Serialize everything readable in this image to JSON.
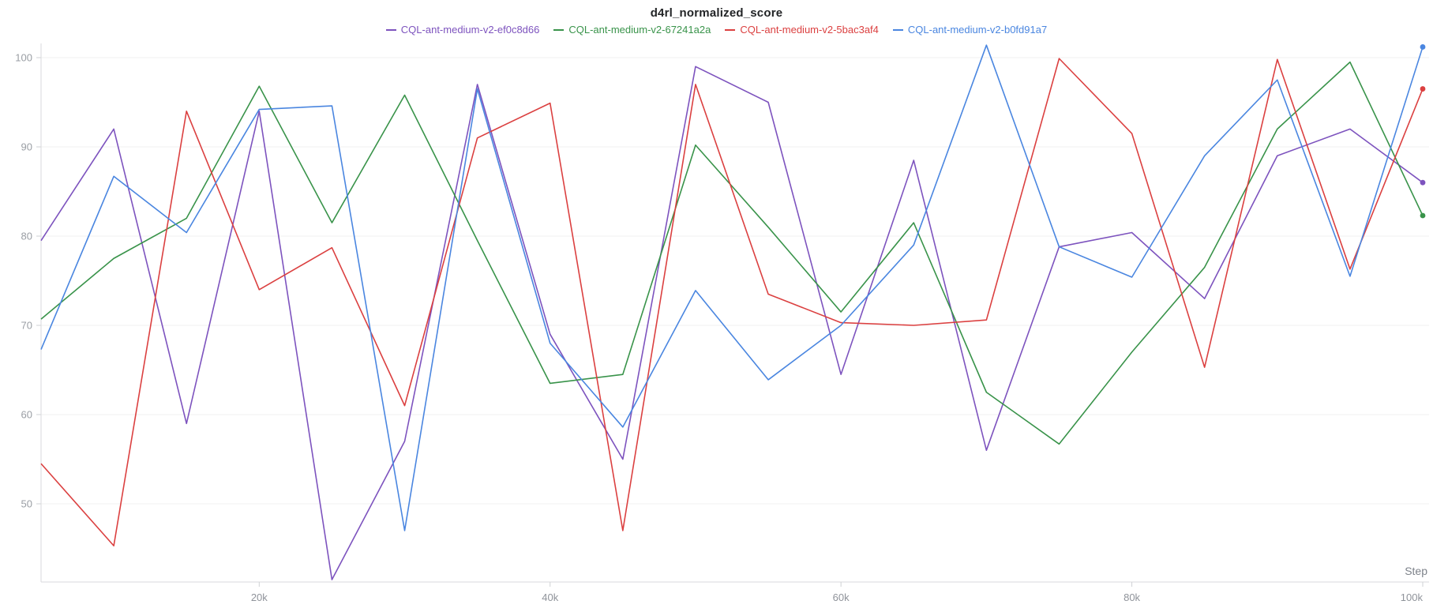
{
  "chart_data": {
    "type": "line",
    "title": "d4rl_normalized_score",
    "xlabel": "Step",
    "x_unit": "steps",
    "x": [
      5000,
      10000,
      15000,
      20000,
      25000,
      30000,
      35000,
      40000,
      45000,
      50000,
      55000,
      60000,
      65000,
      70000,
      75000,
      80000,
      85000,
      90000,
      95000,
      100000
    ],
    "x_tick_labels": [
      "20k",
      "40k",
      "60k",
      "80k",
      "100k"
    ],
    "x_tick_values": [
      20000,
      40000,
      60000,
      80000,
      100000
    ],
    "y_tick_labels": [
      "50",
      "60",
      "70",
      "80",
      "90",
      "100"
    ],
    "y_tick_values": [
      50,
      60,
      70,
      80,
      90,
      100
    ],
    "xlim": [
      5000,
      100000
    ],
    "ylim": [
      41,
      102.5
    ],
    "grid": "horizontal-only",
    "legend_position": "top-center",
    "series": [
      {
        "name": "CQL-ant-medium-v2-ef0c8d66",
        "color": "#7d53be",
        "values": [
          79.5,
          92,
          59,
          94,
          41.5,
          57,
          97,
          69,
          55,
          99,
          95,
          64.5,
          88.5,
          56,
          78.8,
          80.4,
          73,
          89,
          92,
          86
        ]
      },
      {
        "name": "CQL-ant-medium-v2-67241a2a",
        "color": "#39934a",
        "values": [
          70.7,
          77.5,
          82,
          96.8,
          81.5,
          95.8,
          79.5,
          63.5,
          64.5,
          90.2,
          81,
          71.5,
          81.5,
          62.5,
          56.7,
          67,
          76.5,
          92,
          99.5,
          82.3
        ]
      },
      {
        "name": "CQL-ant-medium-v2-5bac3af4",
        "color": "#db4040",
        "values": [
          54.5,
          45.3,
          94,
          74,
          78.7,
          61,
          91,
          94.9,
          47,
          97,
          73.5,
          70.3,
          70,
          70.6,
          99.9,
          91.5,
          65.3,
          99.8,
          76.3,
          96.5
        ]
      },
      {
        "name": "CQL-ant-medium-v2-b0fd91a7",
        "color": "#4a86e0",
        "values": [
          67.3,
          86.7,
          80.4,
          94.2,
          94.6,
          47,
          96.5,
          68,
          58.6,
          73.9,
          63.9,
          70,
          79,
          101.4,
          78.8,
          75.4,
          89,
          97.5,
          75.5,
          101.2
        ]
      }
    ]
  }
}
